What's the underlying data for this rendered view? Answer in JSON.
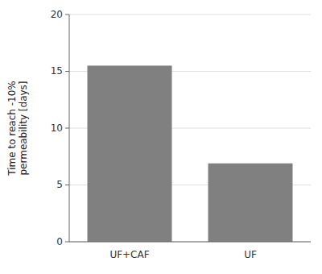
{
  "chart_data": {
    "type": "bar",
    "categories": [
      "UF+CAF",
      "UF"
    ],
    "values": [
      15.5,
      6.9
    ],
    "color": "#808080",
    "ylabel": "Time to reach -10%\npermeability [days]",
    "ylim": [
      0,
      20
    ],
    "yticks": [
      0,
      5,
      10,
      15,
      20
    ],
    "grid": true
  }
}
